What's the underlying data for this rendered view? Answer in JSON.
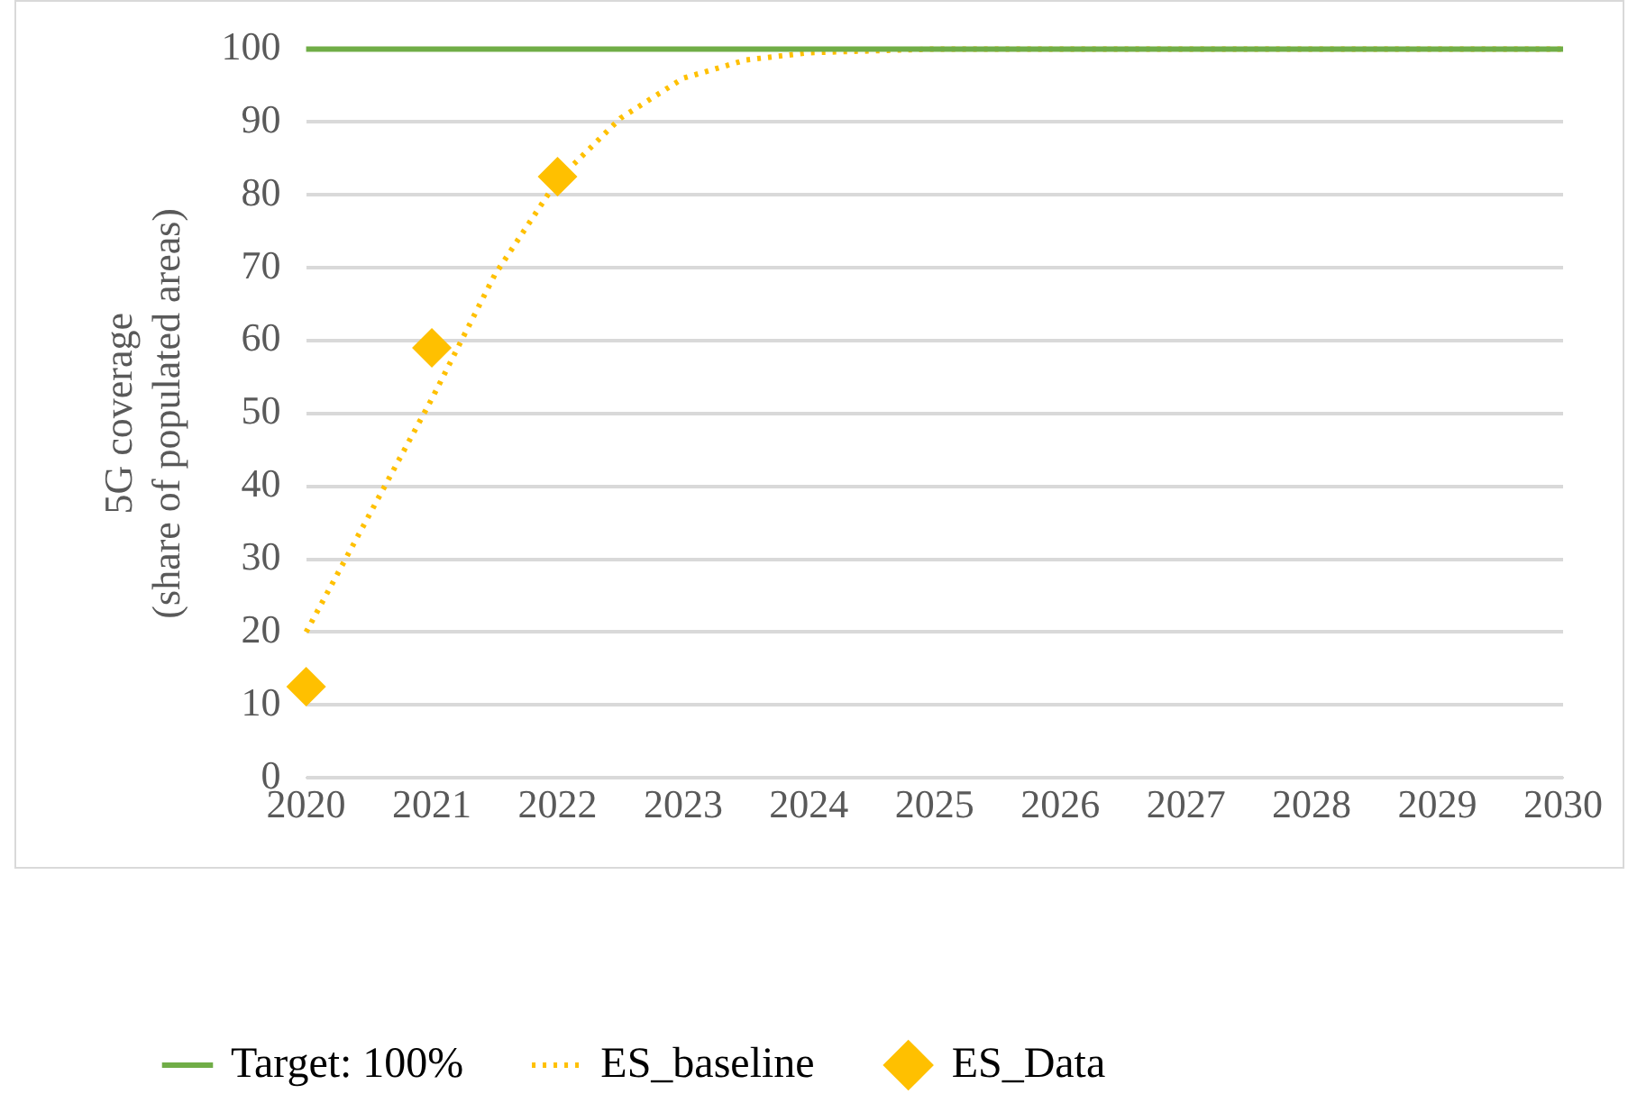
{
  "chart_data": {
    "type": "line",
    "ylabel": "5G coverage\n(share of populated areas)",
    "xlim": [
      2020,
      2030
    ],
    "xticks": [
      2020,
      2021,
      2022,
      2023,
      2024,
      2025,
      2026,
      2027,
      2028,
      2029,
      2030
    ],
    "ylim": [
      0,
      100
    ],
    "yticks": [
      0,
      10,
      20,
      30,
      40,
      50,
      60,
      70,
      80,
      90,
      100
    ],
    "grid": "y",
    "legend": "bottom",
    "series": [
      {
        "name": "Target: 100%",
        "color": "#70ad47",
        "x": [
          2020,
          2030
        ],
        "values": [
          100,
          100
        ],
        "line_style": "solid",
        "marker": "none"
      },
      {
        "name": "ES_baseline",
        "color": "#ffc000",
        "x": [
          2020,
          2020.5,
          2021,
          2021.5,
          2022,
          2022.5,
          2023,
          2023.5,
          2024,
          2025,
          2030
        ],
        "values": [
          20,
          36,
          52,
          69,
          82,
          90.5,
          96,
          98.5,
          99.5,
          100,
          100
        ],
        "line_style": "dotted",
        "marker": "none"
      },
      {
        "name": "ES_Data",
        "type": "scatter",
        "color": "#ffc000",
        "x": [
          2020,
          2021,
          2022
        ],
        "values": [
          12.5,
          59,
          82.5
        ],
        "marker": "diamond"
      }
    ]
  }
}
